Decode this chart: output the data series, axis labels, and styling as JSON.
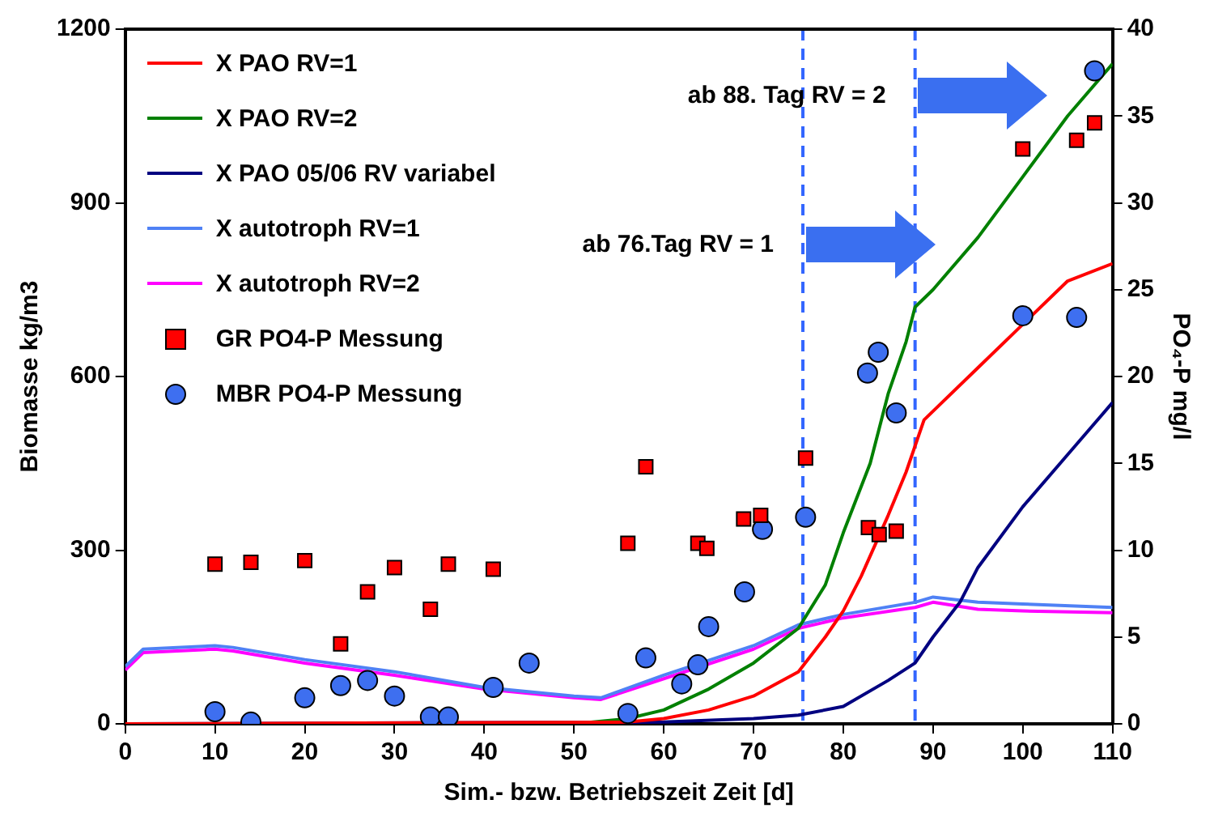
{
  "chart_data": {
    "type": "line",
    "xlabel": "Sim.- bzw. Betriebszeit Zeit [d]",
    "ylabel": "Biomasse kg/m3",
    "y2label": "PO₄-P mg/l",
    "xlim": [
      0,
      110
    ],
    "xticks": [
      0,
      10,
      20,
      30,
      40,
      50,
      60,
      70,
      80,
      90,
      100,
      110
    ],
    "ylim": [
      0,
      1200
    ],
    "yticks": [
      0,
      300,
      600,
      900,
      1200
    ],
    "y2lim": [
      0,
      40
    ],
    "y2ticks": [
      0,
      5,
      10,
      15,
      20,
      25,
      30,
      35,
      40
    ],
    "grid": false,
    "legend": "top left",
    "line_style": "solid",
    "series": [
      {
        "name": "X PAO RV=1",
        "color": "#ff0000",
        "marker": "none",
        "x": [
          0,
          56,
          60,
          65,
          70,
          75,
          78,
          80,
          82,
          85,
          87,
          89,
          90,
          95,
          100,
          105,
          110
        ],
        "values": [
          0,
          3,
          9,
          24,
          48,
          90,
          150,
          195,
          255,
          360,
          435,
          525,
          540,
          615,
          690,
          765,
          795
        ]
      },
      {
        "name": "X PAO RV=2",
        "color": "#008000",
        "marker": "none",
        "x": [
          0,
          50,
          56,
          60,
          65,
          70,
          75,
          78,
          80,
          83,
          85,
          87,
          88,
          90,
          95,
          100,
          105,
          110
        ],
        "values": [
          0,
          0,
          9,
          24,
          60,
          105,
          165,
          240,
          330,
          450,
          570,
          660,
          720,
          750,
          840,
          945,
          1050,
          1140
        ]
      },
      {
        "name": "X PAO 05/06 RV variabel",
        "color": "#000080",
        "marker": "none",
        "x": [
          0,
          60,
          70,
          75,
          80,
          85,
          88,
          90,
          93,
          95,
          100,
          105,
          110
        ],
        "values": [
          0,
          3,
          9,
          15,
          30,
          75,
          105,
          150,
          210,
          270,
          375,
          465,
          555
        ]
      },
      {
        "name": "X autotroph RV=1",
        "color": "#4f81f5",
        "marker": "none",
        "x": [
          0,
          2,
          10,
          12,
          20,
          30,
          40,
          50,
          53,
          60,
          70,
          75,
          80,
          88,
          90,
          95,
          100,
          110
        ],
        "values": [
          99,
          129,
          135,
          132,
          111,
          90,
          63,
          48,
          45,
          84,
          135,
          171,
          189,
          210,
          219,
          210,
          207,
          201
        ]
      },
      {
        "name": "X autotroph RV=2",
        "color": "#ff00ff",
        "marker": "none",
        "x": [
          0,
          2,
          10,
          12,
          20,
          30,
          40,
          50,
          53,
          60,
          70,
          75,
          80,
          88,
          90,
          95,
          100,
          110
        ],
        "values": [
          93,
          123,
          129,
          126,
          105,
          84,
          60,
          45,
          42,
          78,
          129,
          165,
          183,
          201,
          210,
          198,
          195,
          192
        ]
      },
      {
        "name": "GR PO4-P Messung",
        "type": "scatter",
        "axis": "y2",
        "color": "#ff0000",
        "marker": "square",
        "x": [
          10,
          14,
          20,
          24,
          27,
          30,
          34,
          36,
          41,
          56,
          58,
          63.8,
          64.8,
          68.9,
          70.8,
          75.8,
          82.8,
          84,
          85.9,
          100,
          106,
          108
        ],
        "values": [
          9.2,
          9.3,
          9.4,
          4.6,
          7.6,
          9.0,
          6.6,
          9.2,
          8.9,
          10.4,
          14.8,
          10.4,
          10.1,
          11.8,
          12.0,
          15.3,
          11.3,
          10.9,
          11.1,
          33.1,
          33.6,
          34.6
        ]
      },
      {
        "name": "MBR PO4-P Messung",
        "type": "scatter",
        "axis": "y2",
        "color": "#3e6ff0",
        "marker": "circle",
        "x": [
          10,
          14,
          20,
          24,
          27,
          30,
          34,
          36,
          41,
          45,
          56,
          58,
          62,
          63.8,
          65,
          69,
          71,
          75.8,
          82.7,
          83.9,
          85.9,
          100,
          106,
          108
        ],
        "values": [
          0.7,
          0.1,
          1.5,
          2.2,
          2.5,
          1.6,
          0.4,
          0.4,
          2.1,
          3.5,
          0.6,
          3.8,
          2.3,
          3.4,
          5.6,
          7.6,
          11.2,
          11.9,
          20.2,
          21.4,
          17.9,
          23.5,
          23.4,
          37.6
        ]
      }
    ],
    "ref_lines": [
      {
        "axis": "x",
        "value": 75.5,
        "color": "#3366ff",
        "line_style": "dashed"
      },
      {
        "axis": "x",
        "value": 88,
        "color": "#3366ff",
        "line_style": "dashed"
      }
    ],
    "annotations": [
      {
        "text": "ab 88. Tag RV = 2",
        "x": 88,
        "y": 1085
      },
      {
        "text": "ab 76.Tag RV = 1",
        "x": 75.5,
        "y": 827
      }
    ]
  }
}
